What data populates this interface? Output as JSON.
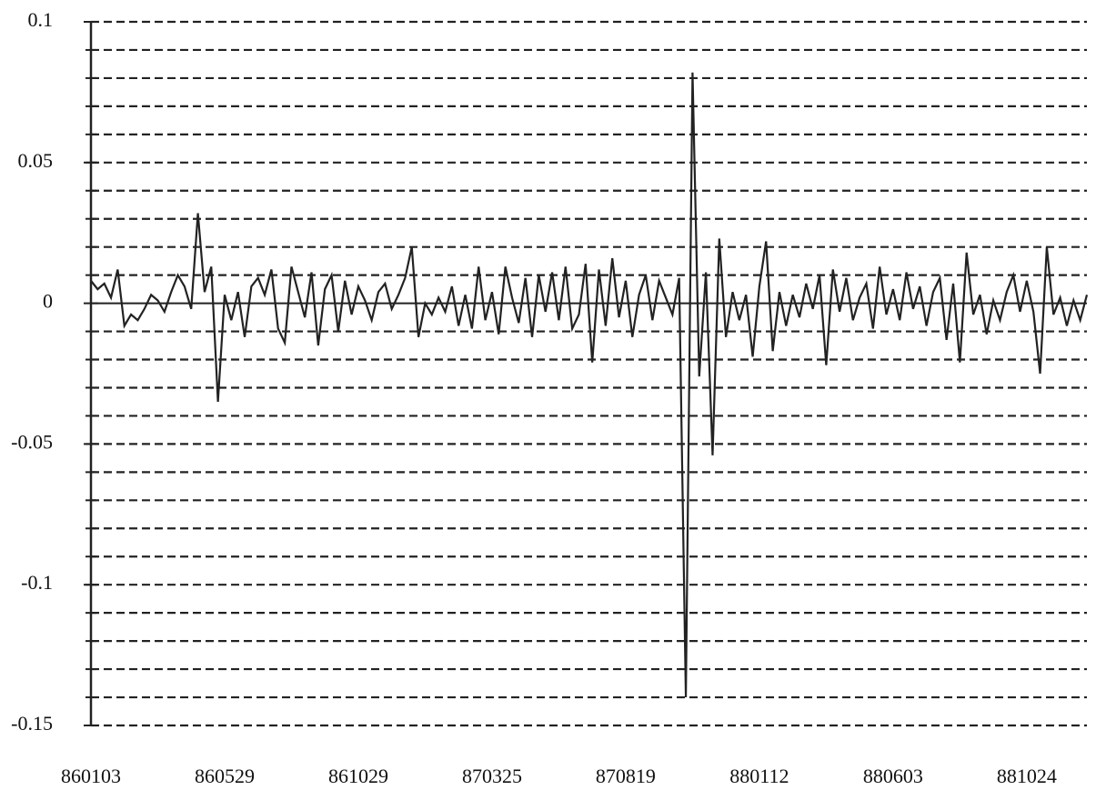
{
  "chart_data": {
    "type": "line",
    "color": "#222222",
    "grid": true,
    "grid_style": "dashed",
    "ylim": [
      -0.15,
      0.1
    ],
    "yticks": [
      -0.15,
      -0.1,
      -0.05,
      0,
      0.05,
      0.1
    ],
    "minor_yticks": [
      -0.15,
      -0.14,
      -0.13,
      -0.12,
      -0.11,
      -0.1,
      -0.09,
      -0.08,
      -0.07,
      -0.06,
      -0.05,
      -0.04,
      -0.03,
      -0.02,
      -0.01,
      0.01,
      0.02,
      0.03,
      0.04,
      0.05,
      0.06,
      0.07,
      0.08,
      0.09,
      0.1
    ],
    "categories": [
      "860103",
      null,
      null,
      null,
      null,
      null,
      null,
      null,
      null,
      null,
      null,
      null,
      null,
      null,
      null,
      null,
      null,
      null,
      null,
      null,
      "860529",
      null,
      null,
      null,
      null,
      null,
      null,
      null,
      null,
      null,
      null,
      null,
      null,
      null,
      null,
      null,
      null,
      null,
      null,
      null,
      "861029",
      null,
      null,
      null,
      null,
      null,
      null,
      null,
      null,
      null,
      null,
      null,
      null,
      null,
      null,
      null,
      null,
      null,
      null,
      null,
      "870325",
      null,
      null,
      null,
      null,
      null,
      null,
      null,
      null,
      null,
      null,
      null,
      null,
      null,
      null,
      null,
      null,
      null,
      null,
      null,
      "870819",
      null,
      null,
      null,
      null,
      null,
      null,
      null,
      null,
      null,
      null,
      null,
      null,
      null,
      null,
      null,
      null,
      null,
      null,
      null,
      "880112",
      null,
      null,
      null,
      null,
      null,
      null,
      null,
      null,
      null,
      null,
      null,
      null,
      null,
      null,
      null,
      null,
      null,
      null,
      null,
      "880603",
      null,
      null,
      null,
      null,
      null,
      null,
      null,
      null,
      null,
      null,
      null,
      null,
      null,
      null,
      null,
      null,
      null,
      null,
      null,
      "881024",
      null,
      null,
      null,
      null,
      null,
      null,
      null,
      null,
      null
    ],
    "values": [
      0.008,
      0.005,
      0.007,
      0.002,
      0.012,
      -0.008,
      -0.004,
      -0.006,
      -0.002,
      0.003,
      0.001,
      -0.003,
      0.004,
      0.01,
      0.006,
      -0.002,
      0.032,
      0.004,
      0.013,
      -0.035,
      0.003,
      -0.006,
      0.004,
      -0.012,
      0.006,
      0.009,
      0.003,
      0.012,
      -0.009,
      -0.014,
      0.013,
      0.004,
      -0.005,
      0.011,
      -0.015,
      0.005,
      0.01,
      -0.01,
      0.008,
      -0.004,
      0.006,
      0.001,
      -0.006,
      0.004,
      0.007,
      -0.002,
      0.003,
      0.009,
      0.02,
      -0.012,
      0.0,
      -0.004,
      0.002,
      -0.003,
      0.006,
      -0.008,
      0.003,
      -0.009,
      0.013,
      -0.006,
      0.004,
      -0.011,
      0.013,
      0.002,
      -0.007,
      0.009,
      -0.012,
      0.01,
      -0.003,
      0.011,
      -0.006,
      0.013,
      -0.009,
      -0.004,
      0.014,
      -0.021,
      0.012,
      -0.008,
      0.016,
      -0.005,
      0.008,
      -0.012,
      0.003,
      0.01,
      -0.006,
      0.008,
      0.002,
      -0.004,
      0.009,
      -0.14,
      0.082,
      -0.026,
      0.011,
      -0.054,
      0.023,
      -0.012,
      0.004,
      -0.006,
      0.003,
      -0.019,
      0.006,
      0.022,
      -0.017,
      0.004,
      -0.008,
      0.003,
      -0.005,
      0.007,
      -0.002,
      0.01,
      -0.022,
      0.012,
      -0.003,
      0.009,
      -0.006,
      0.002,
      0.007,
      -0.009,
      0.013,
      -0.004,
      0.005,
      -0.006,
      0.011,
      -0.002,
      0.006,
      -0.008,
      0.004,
      0.009,
      -0.013,
      0.007,
      -0.021,
      0.018,
      -0.004,
      0.003,
      -0.011,
      0.001,
      -0.006,
      0.004,
      0.01,
      -0.003,
      0.008,
      -0.003,
      -0.025,
      0.02,
      -0.004,
      0.002,
      -0.008,
      0.001,
      -0.006,
      0.003
    ]
  }
}
